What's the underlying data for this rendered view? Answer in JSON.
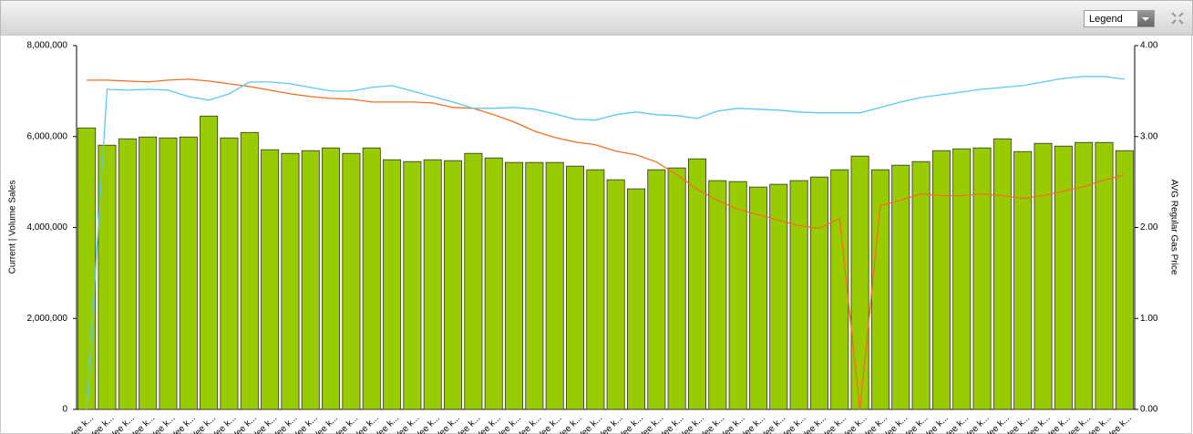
{
  "toolbar": {
    "legend_select": "Legend"
  },
  "chart_data": {
    "type": "bar-line",
    "y_label": "Current | Volume Sales",
    "y2_label": "AVG Regular Gas Price",
    "categories": [
      "Wee k...",
      "Wee k...",
      "Wee k...",
      "Wee k...",
      "Wee k...",
      "Wee k...",
      "Wee k...",
      "Wee k...",
      "Wee k...",
      "Wee k...",
      "Wee k...",
      "Wee k...",
      "Wee k...",
      "Wee k...",
      "Wee k...",
      "Wee k...",
      "Wee k...",
      "Wee k...",
      "Wee k...",
      "Wee k...",
      "Wee k...",
      "Wee k...",
      "Wee k...",
      "Wee k...",
      "Wee k...",
      "Wee k...",
      "Wee k...",
      "Wee k...",
      "Wee k...",
      "Wee k...",
      "Wee k...",
      "Wee k...",
      "Wee k...",
      "Wee k...",
      "Wee k...",
      "Wee k...",
      "Wee k...",
      "Wee k...",
      "Wee k...",
      "Wee k...",
      "Wee k...",
      "Wee k...",
      "Wee k...",
      "Wee k...",
      "Wee k...",
      "Wee k...",
      "Wee k...",
      "Wee k...",
      "Wee k...",
      "Wee k...",
      "Wee k...",
      "Wee k..."
    ],
    "series": [
      {
        "type": "bar",
        "color": "#99cc00",
        "values": [
          6190000,
          5810000,
          5950000,
          5990000,
          5970000,
          5990000,
          6450000,
          5970000,
          6090000,
          5710000,
          5630000,
          5690000,
          5750000,
          5630000,
          5750000,
          5490000,
          5450000,
          5490000,
          5470000,
          5630000,
          5530000,
          5430000,
          5430000,
          5430000,
          5350000,
          5270000,
          5050000,
          4850000,
          5270000,
          5310000,
          5510000,
          5030000,
          5010000,
          4890000,
          4950000,
          5030000,
          5110000,
          5270000,
          5570000,
          5270000,
          5370000,
          5450000,
          5690000,
          5730000,
          5750000,
          5950000,
          5670000,
          5850000,
          5790000,
          5870000,
          5870000,
          5690000
        ]
      },
      {
        "type": "line",
        "axis": "y2",
        "color": "#f07020",
        "values": [
          3.62,
          3.62,
          3.61,
          3.6,
          3.62,
          3.63,
          3.61,
          3.58,
          3.55,
          3.51,
          3.47,
          3.44,
          3.42,
          3.41,
          3.38,
          3.38,
          3.38,
          3.37,
          3.32,
          3.31,
          3.24,
          3.16,
          3.06,
          2.99,
          2.94,
          2.91,
          2.84,
          2.8,
          2.72,
          2.58,
          2.42,
          2.3,
          2.2,
          2.14,
          2.08,
          2.02,
          1.99,
          2.1,
          0,
          2.24,
          2.3,
          2.37,
          2.35,
          2.35,
          2.37,
          2.35,
          2.32,
          2.35,
          2.4,
          2.45,
          2.52,
          2.58
        ]
      },
      {
        "type": "line",
        "axis": "y2",
        "color": "#5bc8f0",
        "values": [
          0,
          3.52,
          3.51,
          3.52,
          3.51,
          3.44,
          3.4,
          3.47,
          3.6,
          3.6,
          3.58,
          3.54,
          3.5,
          3.5,
          3.54,
          3.56,
          3.5,
          3.44,
          3.38,
          3.31,
          3.31,
          3.32,
          3.3,
          3.25,
          3.19,
          3.18,
          3.24,
          3.27,
          3.24,
          3.23,
          3.2,
          3.28,
          3.31,
          3.3,
          3.29,
          3.27,
          3.26,
          3.26,
          3.26,
          3.32,
          3.38,
          3.43,
          3.46,
          3.49,
          3.52,
          3.54,
          3.56,
          3.6,
          3.64,
          3.66,
          3.66,
          3.63
        ]
      }
    ],
    "ylim": [
      0,
      8000000
    ],
    "yticks": [
      0,
      {
        "value": 2000000,
        "label": "2,000,000"
      },
      {
        "value": 4000000,
        "label": "4,000,000"
      },
      {
        "value": 6000000,
        "label": "6,000,000"
      },
      {
        "value": 8000000,
        "label": "8,000,000"
      }
    ],
    "y2lim": [
      0,
      4
    ],
    "y2ticks": [
      {
        "value": 0,
        "label": "0.00"
      },
      {
        "value": 1,
        "label": "1.00"
      },
      {
        "value": 2,
        "label": "2.00"
      },
      {
        "value": 3,
        "label": "3.00"
      },
      {
        "value": 4,
        "label": "4.00"
      }
    ]
  }
}
